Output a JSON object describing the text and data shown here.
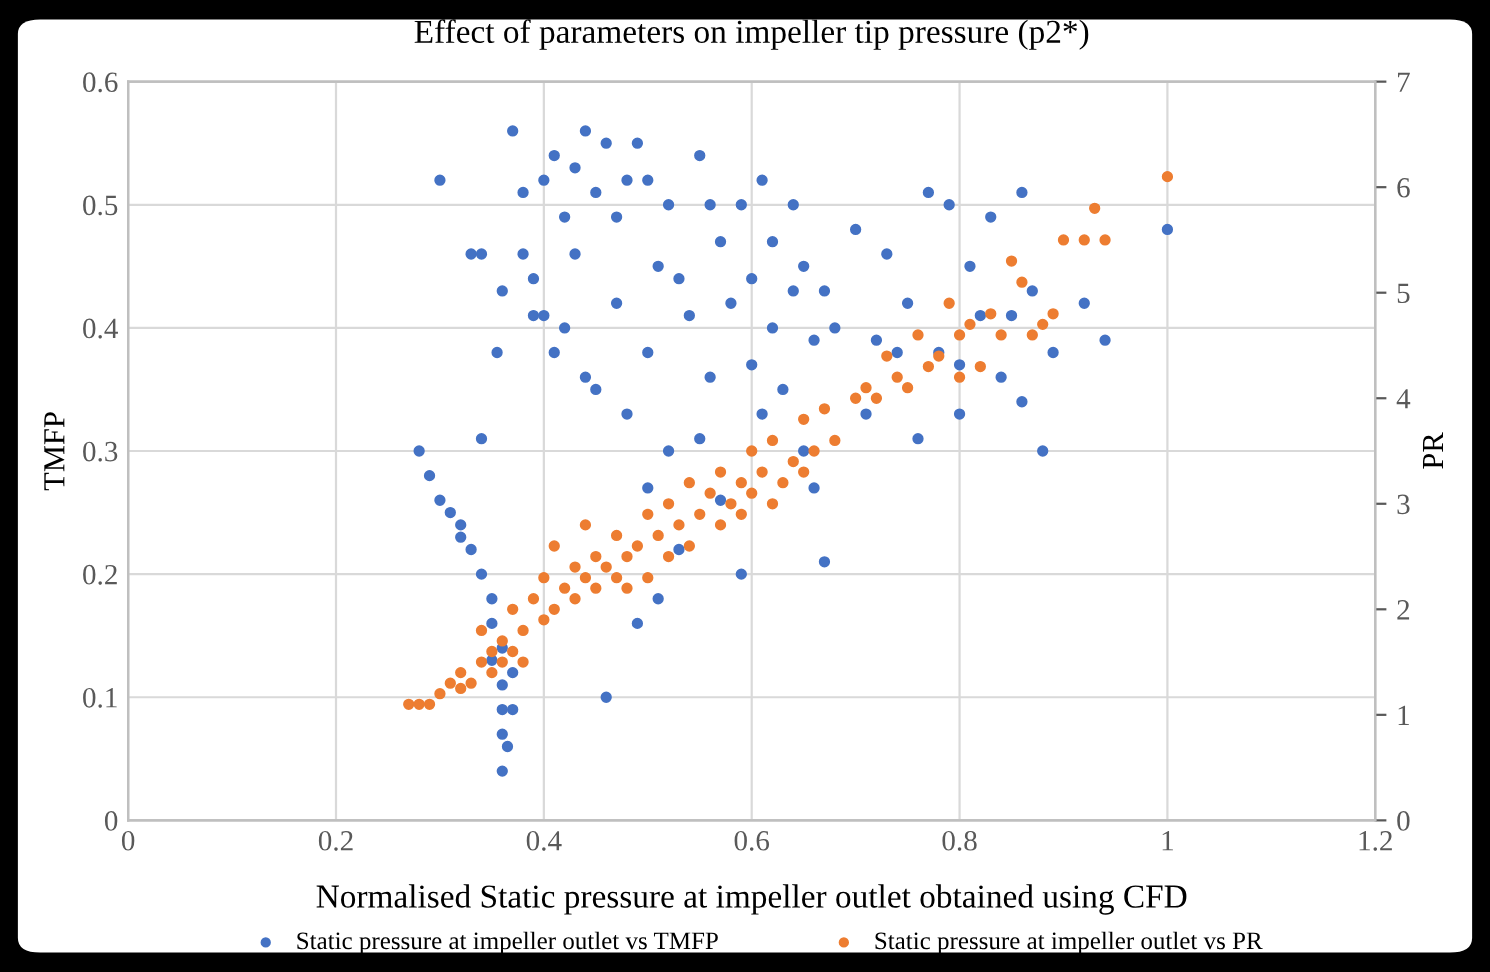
{
  "chart_data": {
    "type": "scatter",
    "title": "Effect of parameters on impeller tip pressure (p2*)",
    "xlabel": "Normalised Static pressure at impeller outlet obtained using CFD",
    "ylabel": "TMFP",
    "y2label": "PR",
    "xlim": [
      0,
      1.2
    ],
    "xticks": [
      0,
      0.2,
      0.4,
      0.6,
      0.8,
      1,
      1.2
    ],
    "ylim": [
      0,
      0.6
    ],
    "yticks": [
      0,
      0.1,
      0.2,
      0.3,
      0.4,
      0.5,
      0.6
    ],
    "y2lim": [
      0,
      7
    ],
    "y2ticks": [
      0,
      1,
      2,
      3,
      4,
      5,
      6,
      7
    ],
    "grid": true,
    "legend": "bottom",
    "marker": "circle",
    "series": [
      {
        "name": "Static pressure at impeller outlet vs TMFP",
        "color": "#4472c4",
        "x": [
          0.28,
          0.29,
          0.3,
          0.3,
          0.31,
          0.32,
          0.32,
          0.33,
          0.33,
          0.34,
          0.34,
          0.34,
          0.35,
          0.35,
          0.35,
          0.36,
          0.36,
          0.36,
          0.36,
          0.365,
          0.37,
          0.37,
          0.36,
          0.355,
          0.36,
          0.37,
          0.38,
          0.38,
          0.39,
          0.39,
          0.4,
          0.4,
          0.41,
          0.41,
          0.42,
          0.42,
          0.43,
          0.43,
          0.44,
          0.44,
          0.45,
          0.45,
          0.46,
          0.46,
          0.47,
          0.47,
          0.48,
          0.48,
          0.49,
          0.49,
          0.5,
          0.5,
          0.5,
          0.51,
          0.51,
          0.52,
          0.52,
          0.53,
          0.53,
          0.54,
          0.55,
          0.55,
          0.56,
          0.56,
          0.57,
          0.57,
          0.58,
          0.59,
          0.59,
          0.6,
          0.6,
          0.61,
          0.61,
          0.62,
          0.62,
          0.63,
          0.64,
          0.64,
          0.65,
          0.65,
          0.66,
          0.66,
          0.67,
          0.67,
          0.68,
          0.7,
          0.71,
          0.72,
          0.73,
          0.74,
          0.75,
          0.76,
          0.77,
          0.78,
          0.79,
          0.8,
          0.8,
          0.81,
          0.82,
          0.83,
          0.84,
          0.85,
          0.86,
          0.86,
          0.87,
          0.88,
          0.89,
          0.92,
          0.94,
          1.0
        ],
        "values": [
          0.3,
          0.28,
          0.26,
          0.52,
          0.25,
          0.24,
          0.23,
          0.22,
          0.46,
          0.2,
          0.46,
          0.31,
          0.18,
          0.16,
          0.13,
          0.11,
          0.09,
          0.07,
          0.04,
          0.06,
          0.09,
          0.12,
          0.14,
          0.38,
          0.43,
          0.56,
          0.51,
          0.46,
          0.44,
          0.41,
          0.41,
          0.52,
          0.54,
          0.38,
          0.49,
          0.4,
          0.53,
          0.46,
          0.56,
          0.36,
          0.51,
          0.35,
          0.55,
          0.1,
          0.49,
          0.42,
          0.52,
          0.33,
          0.55,
          0.16,
          0.52,
          0.38,
          0.27,
          0.45,
          0.18,
          0.5,
          0.3,
          0.44,
          0.22,
          0.41,
          0.54,
          0.31,
          0.5,
          0.36,
          0.47,
          0.26,
          0.42,
          0.5,
          0.2,
          0.44,
          0.37,
          0.52,
          0.33,
          0.4,
          0.47,
          0.35,
          0.5,
          0.43,
          0.3,
          0.45,
          0.27,
          0.39,
          0.21,
          0.43,
          0.4,
          0.48,
          0.33,
          0.39,
          0.46,
          0.38,
          0.42,
          0.31,
          0.51,
          0.38,
          0.5,
          0.37,
          0.33,
          0.45,
          0.41,
          0.49,
          0.36,
          0.41,
          0.51,
          0.34,
          0.43,
          0.3,
          0.38,
          0.42,
          0.39,
          0.48
        ]
      },
      {
        "name": "Static pressure at impeller outlet vs PR",
        "color": "#ed7d31",
        "axis": "y2",
        "x": [
          0.27,
          0.28,
          0.29,
          0.3,
          0.31,
          0.32,
          0.32,
          0.33,
          0.34,
          0.34,
          0.35,
          0.35,
          0.36,
          0.36,
          0.37,
          0.37,
          0.38,
          0.38,
          0.39,
          0.4,
          0.4,
          0.41,
          0.41,
          0.42,
          0.43,
          0.43,
          0.44,
          0.44,
          0.45,
          0.45,
          0.46,
          0.47,
          0.47,
          0.48,
          0.48,
          0.49,
          0.5,
          0.5,
          0.51,
          0.52,
          0.52,
          0.53,
          0.54,
          0.54,
          0.55,
          0.56,
          0.57,
          0.57,
          0.58,
          0.59,
          0.59,
          0.6,
          0.6,
          0.61,
          0.62,
          0.62,
          0.63,
          0.64,
          0.65,
          0.65,
          0.66,
          0.67,
          0.68,
          0.7,
          0.71,
          0.72,
          0.73,
          0.74,
          0.75,
          0.76,
          0.77,
          0.78,
          0.79,
          0.8,
          0.8,
          0.81,
          0.82,
          0.83,
          0.84,
          0.85,
          0.86,
          0.87,
          0.88,
          0.89,
          0.9,
          0.92,
          0.93,
          0.94,
          1.0
        ],
        "values": [
          1.1,
          1.1,
          1.1,
          1.2,
          1.3,
          1.25,
          1.4,
          1.3,
          1.5,
          1.8,
          1.4,
          1.6,
          1.5,
          1.7,
          1.6,
          2.0,
          1.8,
          1.5,
          2.1,
          1.9,
          2.3,
          2.0,
          2.6,
          2.2,
          2.1,
          2.4,
          2.3,
          2.8,
          2.2,
          2.5,
          2.4,
          2.3,
          2.7,
          2.5,
          2.2,
          2.6,
          2.3,
          2.9,
          2.7,
          2.5,
          3.0,
          2.8,
          2.6,
          3.2,
          2.9,
          3.1,
          2.8,
          3.3,
          3.0,
          3.2,
          2.9,
          3.5,
          3.1,
          3.3,
          3.6,
          3.0,
          3.2,
          3.4,
          3.3,
          3.8,
          3.5,
          3.9,
          3.6,
          4.0,
          4.1,
          4.0,
          4.4,
          4.2,
          4.1,
          4.6,
          4.3,
          4.4,
          4.9,
          4.2,
          4.6,
          4.7,
          4.3,
          4.8,
          4.6,
          5.3,
          5.1,
          4.6,
          4.7,
          4.8,
          5.5,
          5.5,
          5.8,
          5.5,
          6.1
        ]
      }
    ]
  }
}
